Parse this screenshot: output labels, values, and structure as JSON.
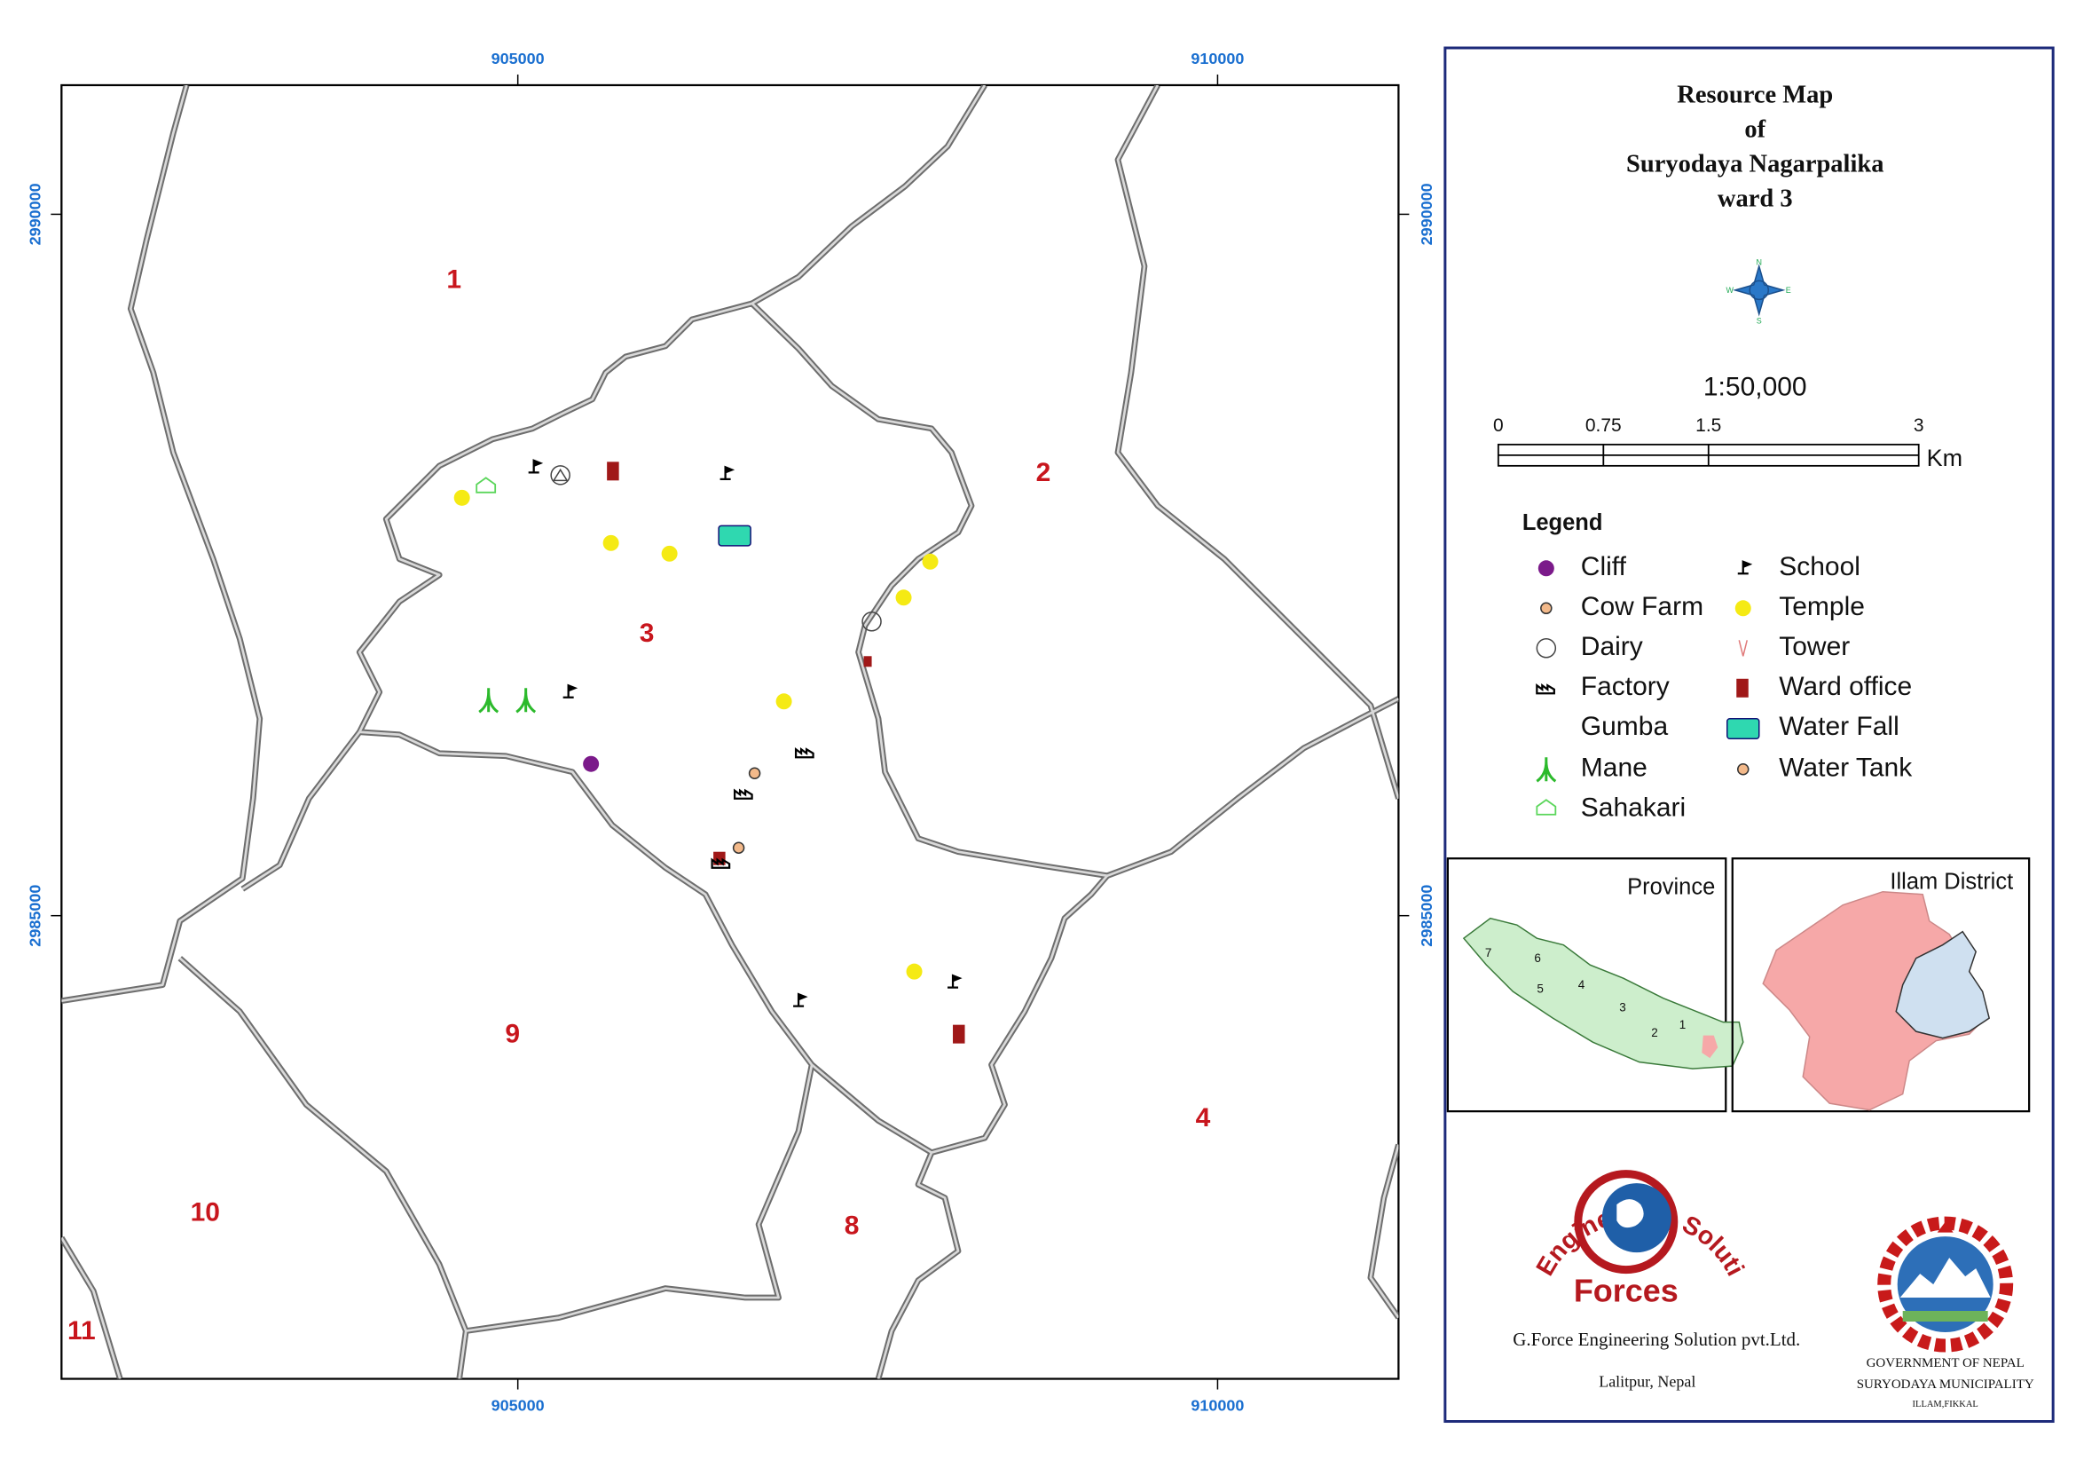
{
  "map": {
    "grid_labels_top": [
      "905000",
      "910000"
    ],
    "grid_labels_bottom": [
      "905000",
      "910000"
    ],
    "grid_labels_left": [
      "2990000",
      "2985000"
    ],
    "grid_labels_right": [
      "2990000",
      "2985000"
    ],
    "wards": [
      "1",
      "2",
      "3",
      "4",
      "8",
      "9",
      "10",
      "11"
    ]
  },
  "title": {
    "lines": [
      "Resource Map",
      "of",
      "Suryodaya Nagarpalika",
      "ward 3"
    ]
  },
  "compass": {
    "n": "N",
    "e": "E",
    "s": "S",
    "w": "W"
  },
  "scale": {
    "ratio": "1:50,000",
    "ticks": [
      "0",
      "0.75",
      "1.5",
      "3"
    ],
    "unit": "Km"
  },
  "legend": {
    "title": "Legend",
    "items": [
      "Cliff",
      "Cow Farm",
      "Dairy",
      "Factory",
      "Gumba",
      "Mane",
      "Sahakari",
      "School",
      "Temple",
      "Tower",
      "Ward office",
      "Water Fall",
      "Water Tank"
    ]
  },
  "insets": {
    "province": {
      "title": "Province",
      "labels": [
        "7",
        "6",
        "5",
        "4",
        "3",
        "2",
        "1"
      ]
    },
    "district": {
      "title": "Illam District"
    }
  },
  "credits": {
    "logo_arc": "Engineering Solution Pvt. Ltd.",
    "logo_word": "Forces",
    "company": "G.Force Engineering Solution pvt.Ltd.",
    "location": "Lalitpur, Nepal"
  },
  "government": {
    "line1": "GOVERNMENT OF NEPAL",
    "line2": "SURYODAYA MUNICIPALITY",
    "line3": "ILLAM,FIKKAL"
  }
}
